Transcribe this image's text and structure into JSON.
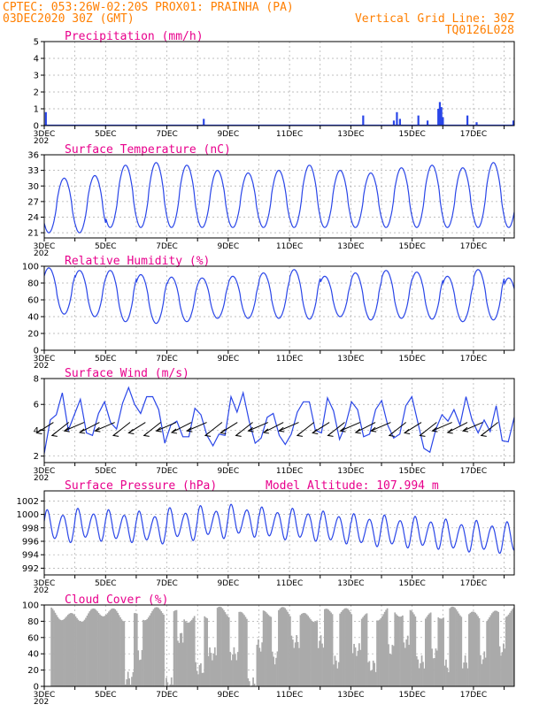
{
  "header": {
    "line1_left": "CPTEC:   053:26W-02:20S   PROX01: PRAINHA (PA)",
    "line2_left": "03DEC2020 30Z (GMT)",
    "line2_right": "Vertical Grid Line: 30Z",
    "line3_right": "TQ0126L028"
  },
  "colors": {
    "header": "#ff7f00",
    "title": "#e8008c",
    "series": "#2a46e8",
    "cloud": "#aaaaaa",
    "grid": "#aaaaaa"
  },
  "x_axis": {
    "labels": [
      "3DEC",
      "5DEC",
      "7DEC",
      "9DEC",
      "11DEC",
      "13DEC",
      "15DEC",
      "17DEC"
    ],
    "under_label": "202"
  },
  "chart_data": [
    {
      "id": "precip",
      "type": "bar",
      "title": "Precipitation (mm/h)",
      "ylim": [
        0,
        5
      ],
      "yticks": [
        0,
        1,
        2,
        3,
        4,
        5
      ],
      "x_range": [
        0,
        15.33
      ],
      "x_unit": "days since 3DEC 00Z",
      "points": [
        [
          0.05,
          0.8
        ],
        [
          5.2,
          0.4
        ],
        [
          10.4,
          0.6
        ],
        [
          11.4,
          0.3
        ],
        [
          11.5,
          0.8
        ],
        [
          11.6,
          0.4
        ],
        [
          12.2,
          0.6
        ],
        [
          12.5,
          0.3
        ],
        [
          12.85,
          1.0
        ],
        [
          12.9,
          1.4
        ],
        [
          12.95,
          1.1
        ],
        [
          13.0,
          0.5
        ],
        [
          13.8,
          0.6
        ],
        [
          14.1,
          0.2
        ],
        [
          15.3,
          0.3
        ]
      ]
    },
    {
      "id": "temp",
      "type": "line",
      "title": "Surface Temperature (nC)",
      "ylim": [
        20,
        36
      ],
      "yticks": [
        21,
        24,
        27,
        30,
        33,
        36
      ],
      "x_range": [
        0,
        15.33
      ],
      "pattern": "diurnal",
      "mins": [
        21,
        21,
        22,
        22,
        22,
        22,
        22,
        22,
        22,
        22,
        22,
        22,
        22,
        22,
        22,
        22
      ],
      "maxs": [
        31.5,
        32,
        34,
        34.5,
        34,
        33,
        32.5,
        33,
        34,
        33,
        32.5,
        33.5,
        34,
        33.5,
        34.5,
        34
      ]
    },
    {
      "id": "rh",
      "type": "line",
      "title": "Relative Humidity (%)",
      "ylim": [
        0,
        100
      ],
      "yticks": [
        0,
        20,
        40,
        60,
        80,
        100
      ],
      "x_range": [
        0,
        15.33
      ],
      "pattern": "diurnal_inverse",
      "mins": [
        43,
        40,
        34,
        32,
        34,
        38,
        38,
        38,
        37,
        40,
        36,
        38,
        37,
        34,
        36,
        34
      ],
      "maxs": [
        98,
        95,
        95,
        90,
        87,
        86,
        88,
        92,
        96,
        88,
        92,
        95,
        93,
        88,
        96,
        86
      ]
    },
    {
      "id": "wind",
      "type": "line",
      "title": "Surface Wind (m/s)",
      "ylim": [
        1.5,
        8
      ],
      "yticks": [
        2,
        4,
        6,
        8
      ],
      "x_range": [
        0,
        15.33
      ],
      "values": [
        2.2,
        4.8,
        5.2,
        6.9,
        4.0,
        5.2,
        6.4,
        3.8,
        3.6,
        5.3,
        6.2,
        4.6,
        4.1,
        6.1,
        7.3,
        6.0,
        5.3,
        6.6,
        6.6,
        5.6,
        3.0,
        4.4,
        4.7,
        3.5,
        3.5,
        5.7,
        5.2,
        3.6,
        2.8,
        3.7,
        3.6,
        6.6,
        5.4,
        6.9,
        4.7,
        3.0,
        3.4,
        5.0,
        5.3,
        3.6,
        2.9,
        3.7,
        5.4,
        6.2,
        6.2,
        4.0,
        3.8,
        6.5,
        5.5,
        3.3,
        4.4,
        6.2,
        5.6,
        3.5,
        3.7,
        5.6,
        6.3,
        4.4,
        3.4,
        3.7,
        5.9,
        6.6,
        4.6,
        2.6,
        2.3,
        4.1,
        5.2,
        4.7,
        5.6,
        4.4,
        6.6,
        4.8,
        3.8,
        4.8,
        3.9,
        5.9,
        3.2,
        3.1,
        5.0
      ],
      "arrows": "wind direction arrows"
    },
    {
      "id": "pres",
      "type": "line",
      "title": "Surface Pressure (hPa)",
      "annotation": "Model Altitude: 107.994 m",
      "ylim": [
        991,
        1003.5
      ],
      "yticks": [
        992,
        994,
        996,
        998,
        1000,
        1002
      ],
      "x_range": [
        0,
        15.33
      ],
      "pattern": "semidiurnal",
      "base": [
        998.2,
        998.4,
        998.2,
        998.0,
        998.5,
        998.8,
        999.0,
        998.6,
        998.4,
        998.0,
        997.6,
        997.4,
        997.2,
        996.8,
        996.6,
        996.4
      ],
      "amp": 2.6
    },
    {
      "id": "cloud",
      "type": "bar",
      "title": "Cloud Cover (%)",
      "ylim": [
        0,
        100
      ],
      "yticks": [
        0,
        20,
        40,
        60,
        80,
        100
      ],
      "x_range": [
        0,
        15.33
      ],
      "level": 88,
      "drops": [
        [
          2.6,
          2.9,
          10
        ],
        [
          3.0,
          3.2,
          38
        ],
        [
          3.9,
          4.2,
          3
        ],
        [
          4.3,
          4.5,
          60
        ],
        [
          4.9,
          5.2,
          22
        ],
        [
          5.3,
          5.6,
          40
        ],
        [
          6.0,
          6.3,
          40
        ],
        [
          6.6,
          6.9,
          3
        ],
        [
          6.9,
          7.1,
          50
        ],
        [
          7.4,
          7.6,
          35
        ],
        [
          8.0,
          8.3,
          55
        ],
        [
          8.9,
          9.1,
          55
        ],
        [
          9.4,
          9.6,
          30
        ],
        [
          10.0,
          10.3,
          45
        ],
        [
          10.5,
          10.8,
          25
        ],
        [
          11.2,
          11.4,
          45
        ],
        [
          11.7,
          11.9,
          55
        ],
        [
          12.1,
          12.4,
          30
        ],
        [
          12.6,
          12.8,
          40
        ],
        [
          13.0,
          13.2,
          25
        ],
        [
          13.6,
          13.8,
          30
        ],
        [
          14.2,
          14.4,
          35
        ],
        [
          14.8,
          15.0,
          45
        ]
      ]
    }
  ]
}
